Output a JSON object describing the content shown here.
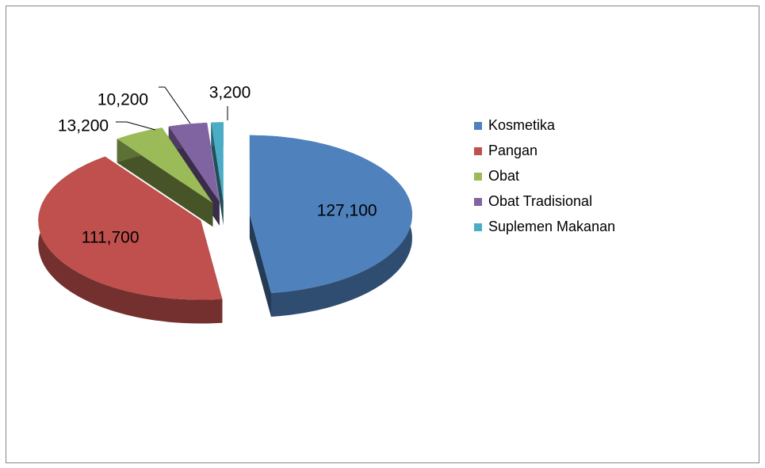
{
  "chart_data": {
    "type": "pie",
    "categories": [
      "Kosmetika",
      "Pangan",
      "Obat",
      "Obat Tradisional",
      "Suplemen Makanan"
    ],
    "values": [
      127100,
      111700,
      13200,
      10200,
      3200
    ],
    "value_labels": [
      "127,100",
      "111,700",
      "13,200",
      "10,200",
      "3,200"
    ],
    "colors": [
      "#4f81bd",
      "#c0504d",
      "#9bbb59",
      "#8064a2",
      "#4bacc6"
    ],
    "legend": "right"
  }
}
